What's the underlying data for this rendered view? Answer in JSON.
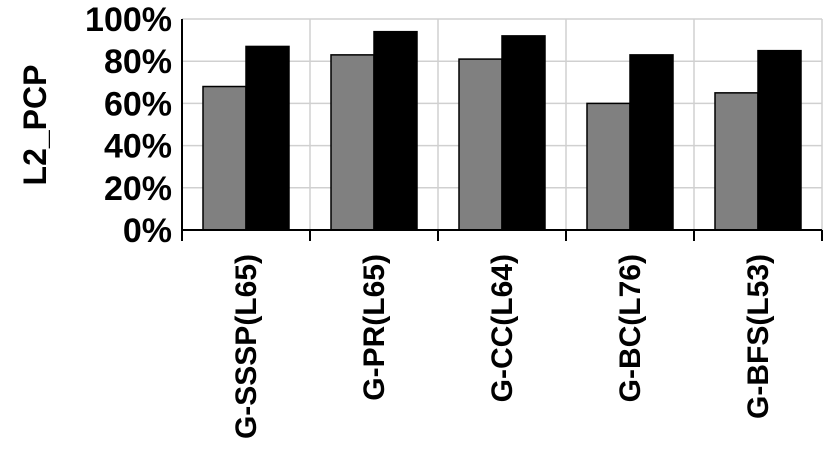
{
  "chart_data": {
    "type": "bar",
    "ylabel": "L2_PCP",
    "categories": [
      "G-SSSP(L65)",
      "G-PR(L65)",
      "G-CC(L64)",
      "G-BC(L76)",
      "G-BFS(L53)"
    ],
    "series": [
      {
        "color": "#808080",
        "values": [
          68,
          83,
          81,
          60,
          65
        ]
      },
      {
        "color": "#000000",
        "values": [
          87,
          94,
          92,
          83,
          85
        ]
      }
    ],
    "ylim": [
      0,
      100
    ],
    "yticks": [
      0,
      20,
      40,
      60,
      80,
      100
    ],
    "ytick_labels": [
      "0%",
      "20%",
      "40%",
      "60%",
      "80%",
      "100%"
    ],
    "grid": true,
    "legend": "none"
  }
}
